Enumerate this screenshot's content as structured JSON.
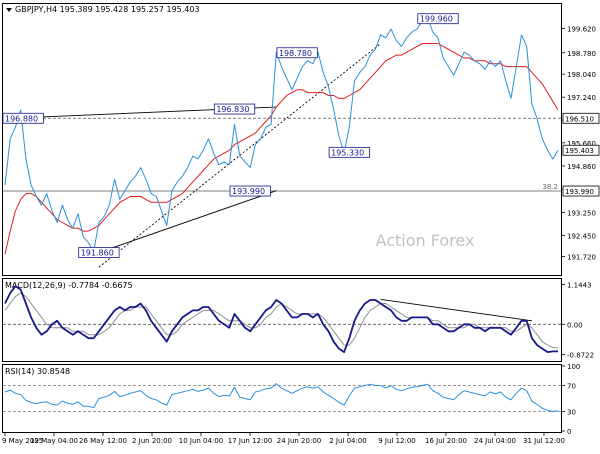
{
  "header": {
    "symbol_line": "GBPJPY,H4  195.389 195.428 195.257 195.403",
    "macd_label": "MACD(12,26,9) -0.7784 -0.6675",
    "rsi_label": "RSI(14) 30.8548",
    "watermark": "Action Forex"
  },
  "colors": {
    "price": "#2a90dc",
    "ma": "#e01e1e",
    "macd_main": "#17178c",
    "macd_signal": "#909090",
    "rsi": "#2a90dc",
    "trendline": "#000000",
    "label_border": "#17178c",
    "label_text": "#17178c",
    "watermark": "#c0c0c0"
  },
  "chart_data": [
    {
      "type": "line",
      "panel": "price",
      "ylim": [
        191.15,
        200.4
      ],
      "y_ticks": [
        "199.620",
        "198.780",
        "198.040",
        "197.240",
        "196.450",
        "195.660",
        "194.860",
        "194.050",
        "193.250",
        "192.450",
        "191.720"
      ],
      "y_tick_values": [
        199.62,
        198.78,
        198.04,
        197.24,
        196.45,
        195.66,
        194.86,
        194.05,
        193.25,
        192.45,
        191.72
      ],
      "x_ticks": [
        "9 May 2025",
        "19 May 04:00",
        "26 May 12:00",
        "2 Jun 20:00",
        "10 Jun 04:00",
        "17 Jun 12:00",
        "24 Jun 20:00",
        "2 Jul 04:00",
        "9 Jul 12:00",
        "16 Jul 20:00",
        "24 Jul 04:00",
        "31 Jul 12:00"
      ],
      "series": [
        {
          "name": "GBPJPY",
          "values": [
            194.2,
            195.8,
            196.2,
            196.8,
            195.1,
            194.2,
            193.8,
            193.5,
            193.9,
            193.3,
            192.9,
            193.5,
            193.0,
            192.7,
            193.2,
            192.4,
            192.2,
            191.9,
            192.9,
            193.1,
            193.5,
            194.4,
            193.7,
            194.0,
            194.3,
            194.5,
            194.8,
            194.4,
            193.9,
            193.8,
            193.3,
            192.8,
            194.0,
            194.3,
            194.5,
            194.8,
            195.2,
            195.1,
            195.4,
            195.8,
            195.3,
            194.9,
            195.0,
            194.9,
            196.3,
            195.2,
            195.0,
            194.8,
            195.6,
            195.8,
            196.2,
            196.3,
            198.8,
            198.3,
            197.9,
            197.5,
            197.9,
            198.3,
            198.5,
            198.4,
            198.8,
            198.1,
            197.6,
            196.8,
            195.9,
            195.3,
            196.2,
            197.8,
            198.1,
            198.3,
            198.7,
            198.9,
            199.4,
            199.3,
            199.6,
            199.2,
            199.0,
            199.3,
            199.5,
            199.6,
            199.9,
            200.0,
            199.5,
            199.3,
            198.6,
            198.3,
            198.0,
            198.4,
            198.8,
            198.7,
            198.5,
            198.4,
            198.2,
            198.5,
            198.3,
            198.5,
            197.8,
            197.2,
            198.3,
            199.4,
            199.0,
            197.0,
            196.5,
            195.8,
            195.4,
            195.1,
            195.4
          ]
        },
        {
          "name": "MA",
          "values": [
            191.8,
            192.6,
            193.3,
            193.7,
            193.9,
            193.9,
            193.8,
            193.6,
            193.4,
            193.2,
            193.0,
            192.9,
            192.8,
            192.7,
            192.7,
            192.6,
            192.6,
            192.7,
            192.8,
            193.0,
            193.2,
            193.4,
            193.6,
            193.7,
            193.8,
            193.8,
            193.8,
            193.7,
            193.6,
            193.6,
            193.6,
            193.6,
            193.7,
            193.8,
            193.9,
            194.1,
            194.3,
            194.5,
            194.7,
            194.9,
            195.1,
            195.2,
            195.3,
            195.4,
            195.6,
            195.7,
            195.8,
            195.9,
            196.0,
            196.2,
            196.4,
            196.6,
            196.9,
            197.1,
            197.3,
            197.4,
            197.5,
            197.5,
            197.4,
            197.4,
            197.4,
            197.4,
            197.3,
            197.3,
            197.2,
            197.2,
            197.3,
            197.4,
            197.5,
            197.7,
            197.9,
            198.1,
            198.3,
            198.5,
            198.6,
            198.7,
            198.7,
            198.8,
            198.9,
            199.0,
            199.1,
            199.1,
            199.1,
            199.1,
            199.0,
            198.9,
            198.8,
            198.7,
            198.6,
            198.6,
            198.5,
            198.5,
            198.5,
            198.4,
            198.4,
            198.4,
            198.3,
            198.3,
            198.3,
            198.3,
            198.3,
            198.1,
            197.9,
            197.7,
            197.4,
            197.1,
            196.8
          ]
        }
      ],
      "horizontal_levels": [
        {
          "value": 196.51,
          "label": "196.510",
          "style": "dashed"
        },
        {
          "value": 193.99,
          "label": "193.990",
          "style": "solid",
          "tag": "38.2"
        },
        {
          "value": 195.403,
          "label": "195.403",
          "style": "current"
        }
      ],
      "annotations": [
        {
          "text": "196.880",
          "x": 1,
          "y": 196.51
        },
        {
          "text": "191.860",
          "x": 18,
          "y": 191.86
        },
        {
          "text": "196.830",
          "x": 44,
          "y": 196.83
        },
        {
          "text": "193.990",
          "x": 47,
          "y": 193.99
        },
        {
          "text": "198.780",
          "x": 56,
          "y": 198.78
        },
        {
          "text": "195.330",
          "x": 66,
          "y": 195.33
        },
        {
          "text": "199.960",
          "x": 83,
          "y": 199.96
        }
      ],
      "trendlines": [
        {
          "x1": 1,
          "y1": 196.51,
          "x2": 52,
          "y2": 196.9,
          "style": "solid"
        },
        {
          "x1": 18,
          "y1": 191.86,
          "x2": 52,
          "y2": 194.0,
          "style": "solid"
        },
        {
          "x1": 18,
          "y1": 191.35,
          "x2": 72,
          "y2": 199.1,
          "style": "dashed"
        }
      ]
    },
    {
      "type": "line",
      "panel": "macd",
      "ylim": [
        -1.0,
        1.22
      ],
      "y_ticks": [
        "1.1443",
        "0.00",
        "-0.8722"
      ],
      "y_tick_values": [
        1.1443,
        0,
        -0.8722
      ],
      "series": [
        {
          "name": "MACD",
          "values": [
            0.6,
            0.9,
            1.1,
            1.0,
            0.6,
            0.2,
            -0.1,
            -0.3,
            -0.2,
            0.0,
            0.1,
            -0.1,
            -0.2,
            -0.3,
            -0.2,
            -0.3,
            -0.4,
            -0.4,
            -0.2,
            0.0,
            0.2,
            0.4,
            0.5,
            0.4,
            0.5,
            0.5,
            0.6,
            0.4,
            0.1,
            -0.1,
            -0.3,
            -0.5,
            -0.2,
            0.0,
            0.2,
            0.3,
            0.4,
            0.4,
            0.5,
            0.5,
            0.3,
            0.1,
            0.0,
            -0.1,
            0.3,
            0.1,
            -0.1,
            -0.2,
            0.0,
            0.2,
            0.4,
            0.5,
            0.7,
            0.6,
            0.4,
            0.2,
            0.2,
            0.3,
            0.3,
            0.2,
            0.3,
            0.0,
            -0.2,
            -0.5,
            -0.7,
            -0.8,
            -0.4,
            0.1,
            0.4,
            0.6,
            0.7,
            0.7,
            0.6,
            0.5,
            0.4,
            0.2,
            0.1,
            0.1,
            0.2,
            0.2,
            0.2,
            0.2,
            0.0,
            0.0,
            -0.1,
            -0.2,
            -0.2,
            -0.1,
            0.0,
            0.0,
            -0.1,
            -0.1,
            -0.2,
            -0.1,
            -0.1,
            -0.1,
            -0.2,
            -0.3,
            -0.1,
            0.1,
            0.1,
            -0.4,
            -0.6,
            -0.7,
            -0.8,
            -0.78,
            -0.78
          ]
        },
        {
          "name": "Signal",
          "values": [
            0.4,
            0.6,
            0.8,
            0.9,
            0.8,
            0.6,
            0.4,
            0.2,
            0.0,
            -0.1,
            -0.1,
            -0.1,
            -0.1,
            -0.2,
            -0.2,
            -0.2,
            -0.3,
            -0.3,
            -0.3,
            -0.2,
            -0.1,
            0.1,
            0.3,
            0.4,
            0.4,
            0.5,
            0.5,
            0.5,
            0.3,
            0.1,
            -0.1,
            -0.3,
            -0.3,
            -0.2,
            0.0,
            0.1,
            0.2,
            0.3,
            0.4,
            0.4,
            0.4,
            0.3,
            0.2,
            0.1,
            0.1,
            0.1,
            0.0,
            -0.1,
            -0.1,
            0.0,
            0.2,
            0.3,
            0.5,
            0.6,
            0.5,
            0.4,
            0.3,
            0.3,
            0.3,
            0.3,
            0.3,
            0.2,
            0.0,
            -0.2,
            -0.4,
            -0.6,
            -0.6,
            -0.4,
            -0.1,
            0.2,
            0.4,
            0.5,
            0.6,
            0.6,
            0.5,
            0.4,
            0.3,
            0.2,
            0.2,
            0.2,
            0.2,
            0.2,
            0.1,
            0.1,
            0.0,
            -0.1,
            -0.1,
            -0.1,
            -0.1,
            0.0,
            0.0,
            -0.1,
            -0.1,
            -0.1,
            -0.1,
            -0.1,
            -0.1,
            -0.2,
            -0.2,
            -0.1,
            0.0,
            -0.1,
            -0.3,
            -0.5,
            -0.6,
            -0.67,
            -0.67
          ]
        }
      ],
      "trendlines": [
        {
          "x1": 72,
          "y1": 0.72,
          "x2": 101,
          "y2": 0.1,
          "style": "solid"
        }
      ]
    },
    {
      "type": "line",
      "panel": "rsi",
      "ylim": [
        0,
        100
      ],
      "y_ticks": [
        "100",
        "70",
        "30",
        "0"
      ],
      "y_tick_values": [
        100,
        70,
        30,
        0
      ],
      "levels": [
        70,
        30
      ],
      "series": [
        {
          "name": "RSI",
          "values": [
            60,
            63,
            58,
            56,
            47,
            44,
            42,
            44,
            45,
            41,
            40,
            46,
            43,
            41,
            45,
            38,
            38,
            36,
            50,
            52,
            55,
            61,
            53,
            55,
            58,
            60,
            62,
            55,
            50,
            48,
            43,
            40,
            56,
            58,
            60,
            62,
            64,
            61,
            63,
            66,
            58,
            53,
            55,
            54,
            67,
            52,
            50,
            48,
            60,
            62,
            65,
            66,
            73,
            66,
            62,
            58,
            62,
            66,
            68,
            66,
            68,
            60,
            55,
            50,
            44,
            40,
            54,
            66,
            68,
            70,
            72,
            70,
            70,
            66,
            70,
            64,
            62,
            65,
            67,
            68,
            70,
            72,
            62,
            58,
            52,
            50,
            48,
            56,
            62,
            60,
            58,
            56,
            54,
            60,
            57,
            60,
            52,
            48,
            58,
            66,
            62,
            46,
            41,
            35,
            32,
            30,
            31
          ]
        }
      ]
    }
  ]
}
